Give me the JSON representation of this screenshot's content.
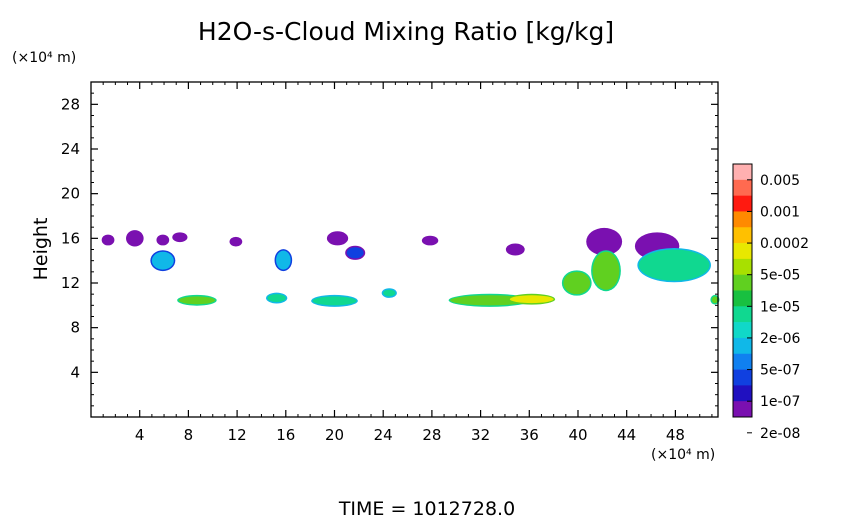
{
  "chart_data": {
    "type": "heatmap",
    "title": "H2O-s-Cloud Mixing Ratio [kg/kg]",
    "ylabel": "Height",
    "y_unit": "(×10⁴ m)",
    "x_unit": "(×10⁴ m)",
    "xlim": [
      0,
      51.5
    ],
    "ylim": [
      0,
      30
    ],
    "xticks": [
      "4",
      "8",
      "12",
      "16",
      "20",
      "24",
      "28",
      "32",
      "36",
      "40",
      "44",
      "48"
    ],
    "xtick_values": [
      4,
      8,
      12,
      16,
      20,
      24,
      28,
      32,
      36,
      40,
      44,
      48
    ],
    "yticks": [
      "4",
      "8",
      "12",
      "16",
      "20",
      "24",
      "28"
    ],
    "ytick_values": [
      4,
      8,
      12,
      16,
      20,
      24,
      28
    ],
    "grid": false,
    "colorbar": {
      "labels": [
        "0.005",
        "0.001",
        "0.0002",
        "5e-05",
        "1e-05",
        "2e-06",
        "5e-07",
        "1e-07",
        "2e-08"
      ],
      "colors": [
        "#ffb0b0",
        "#ff6a50",
        "#ff1a10",
        "#ff8a00",
        "#ffc000",
        "#e8e800",
        "#a8e000",
        "#60d020",
        "#18c040",
        "#10d890",
        "#10d8c8",
        "#10b8e8",
        "#1080f0",
        "#1040e0",
        "#2010c0",
        "#7a10b0"
      ],
      "placement": "right"
    },
    "cloud_features": [
      {
        "x": [
          1.0,
          1.8
        ],
        "y": [
          15.5,
          16.2
        ],
        "level": "1e-07"
      },
      {
        "x": [
          3.0,
          4.2
        ],
        "y": [
          15.4,
          16.6
        ],
        "level": "2e-08"
      },
      {
        "x": [
          5.5,
          6.3
        ],
        "y": [
          15.5,
          16.2
        ],
        "level": "1e-07"
      },
      {
        "x": [
          5.0,
          6.8
        ],
        "y": [
          13.2,
          14.8
        ],
        "level": "2e-06"
      },
      {
        "x": [
          6.8,
          7.8
        ],
        "y": [
          15.8,
          16.4
        ],
        "level": "2e-08"
      },
      {
        "x": [
          7.2,
          10.2
        ],
        "y": [
          10.1,
          10.8
        ],
        "level": "5e-05"
      },
      {
        "x": [
          11.5,
          12.3
        ],
        "y": [
          15.4,
          16.0
        ],
        "level": "2e-08"
      },
      {
        "x": [
          15.2,
          16.4
        ],
        "y": [
          13.2,
          14.9
        ],
        "level": "2e-06"
      },
      {
        "x": [
          14.5,
          16.0
        ],
        "y": [
          10.3,
          11.0
        ],
        "level": "1e-05"
      },
      {
        "x": [
          19.5,
          21.0
        ],
        "y": [
          15.5,
          16.5
        ],
        "level": "1e-07"
      },
      {
        "x": [
          18.2,
          21.8
        ],
        "y": [
          10.0,
          10.8
        ],
        "level": "1e-05"
      },
      {
        "x": [
          21.0,
          22.4
        ],
        "y": [
          14.2,
          15.2
        ],
        "level": "5e-07"
      },
      {
        "x": [
          24.0,
          25.0
        ],
        "y": [
          10.8,
          11.4
        ],
        "level": "1e-05"
      },
      {
        "x": [
          27.3,
          28.4
        ],
        "y": [
          15.5,
          16.1
        ],
        "level": "1e-07"
      },
      {
        "x": [
          29.5,
          36.0
        ],
        "y": [
          10.0,
          10.9
        ],
        "level": "5e-05"
      },
      {
        "x": [
          34.4,
          38.0
        ],
        "y": [
          10.2,
          10.9
        ],
        "level": "0.0002"
      },
      {
        "x": [
          34.2,
          35.5
        ],
        "y": [
          14.6,
          15.4
        ],
        "level": "1e-07"
      },
      {
        "x": [
          38.8,
          41.0
        ],
        "y": [
          11.0,
          13.0
        ],
        "level": "5e-05"
      },
      {
        "x": [
          40.8,
          43.5
        ],
        "y": [
          14.6,
          16.8
        ],
        "level": "2e-08"
      },
      {
        "x": [
          41.2,
          43.4
        ],
        "y": [
          11.4,
          14.8
        ],
        "level": "5e-05"
      },
      {
        "x": [
          44.8,
          48.2
        ],
        "y": [
          14.2,
          16.4
        ],
        "level": "2e-08"
      },
      {
        "x": [
          45.0,
          50.8
        ],
        "y": [
          12.2,
          15.0
        ],
        "level": "1e-05"
      },
      {
        "x": [
          51.0,
          51.5
        ],
        "y": [
          10.2,
          10.8
        ],
        "level": "5e-05"
      }
    ]
  },
  "footer": {
    "time_text": "TIME = 1012728.0"
  }
}
